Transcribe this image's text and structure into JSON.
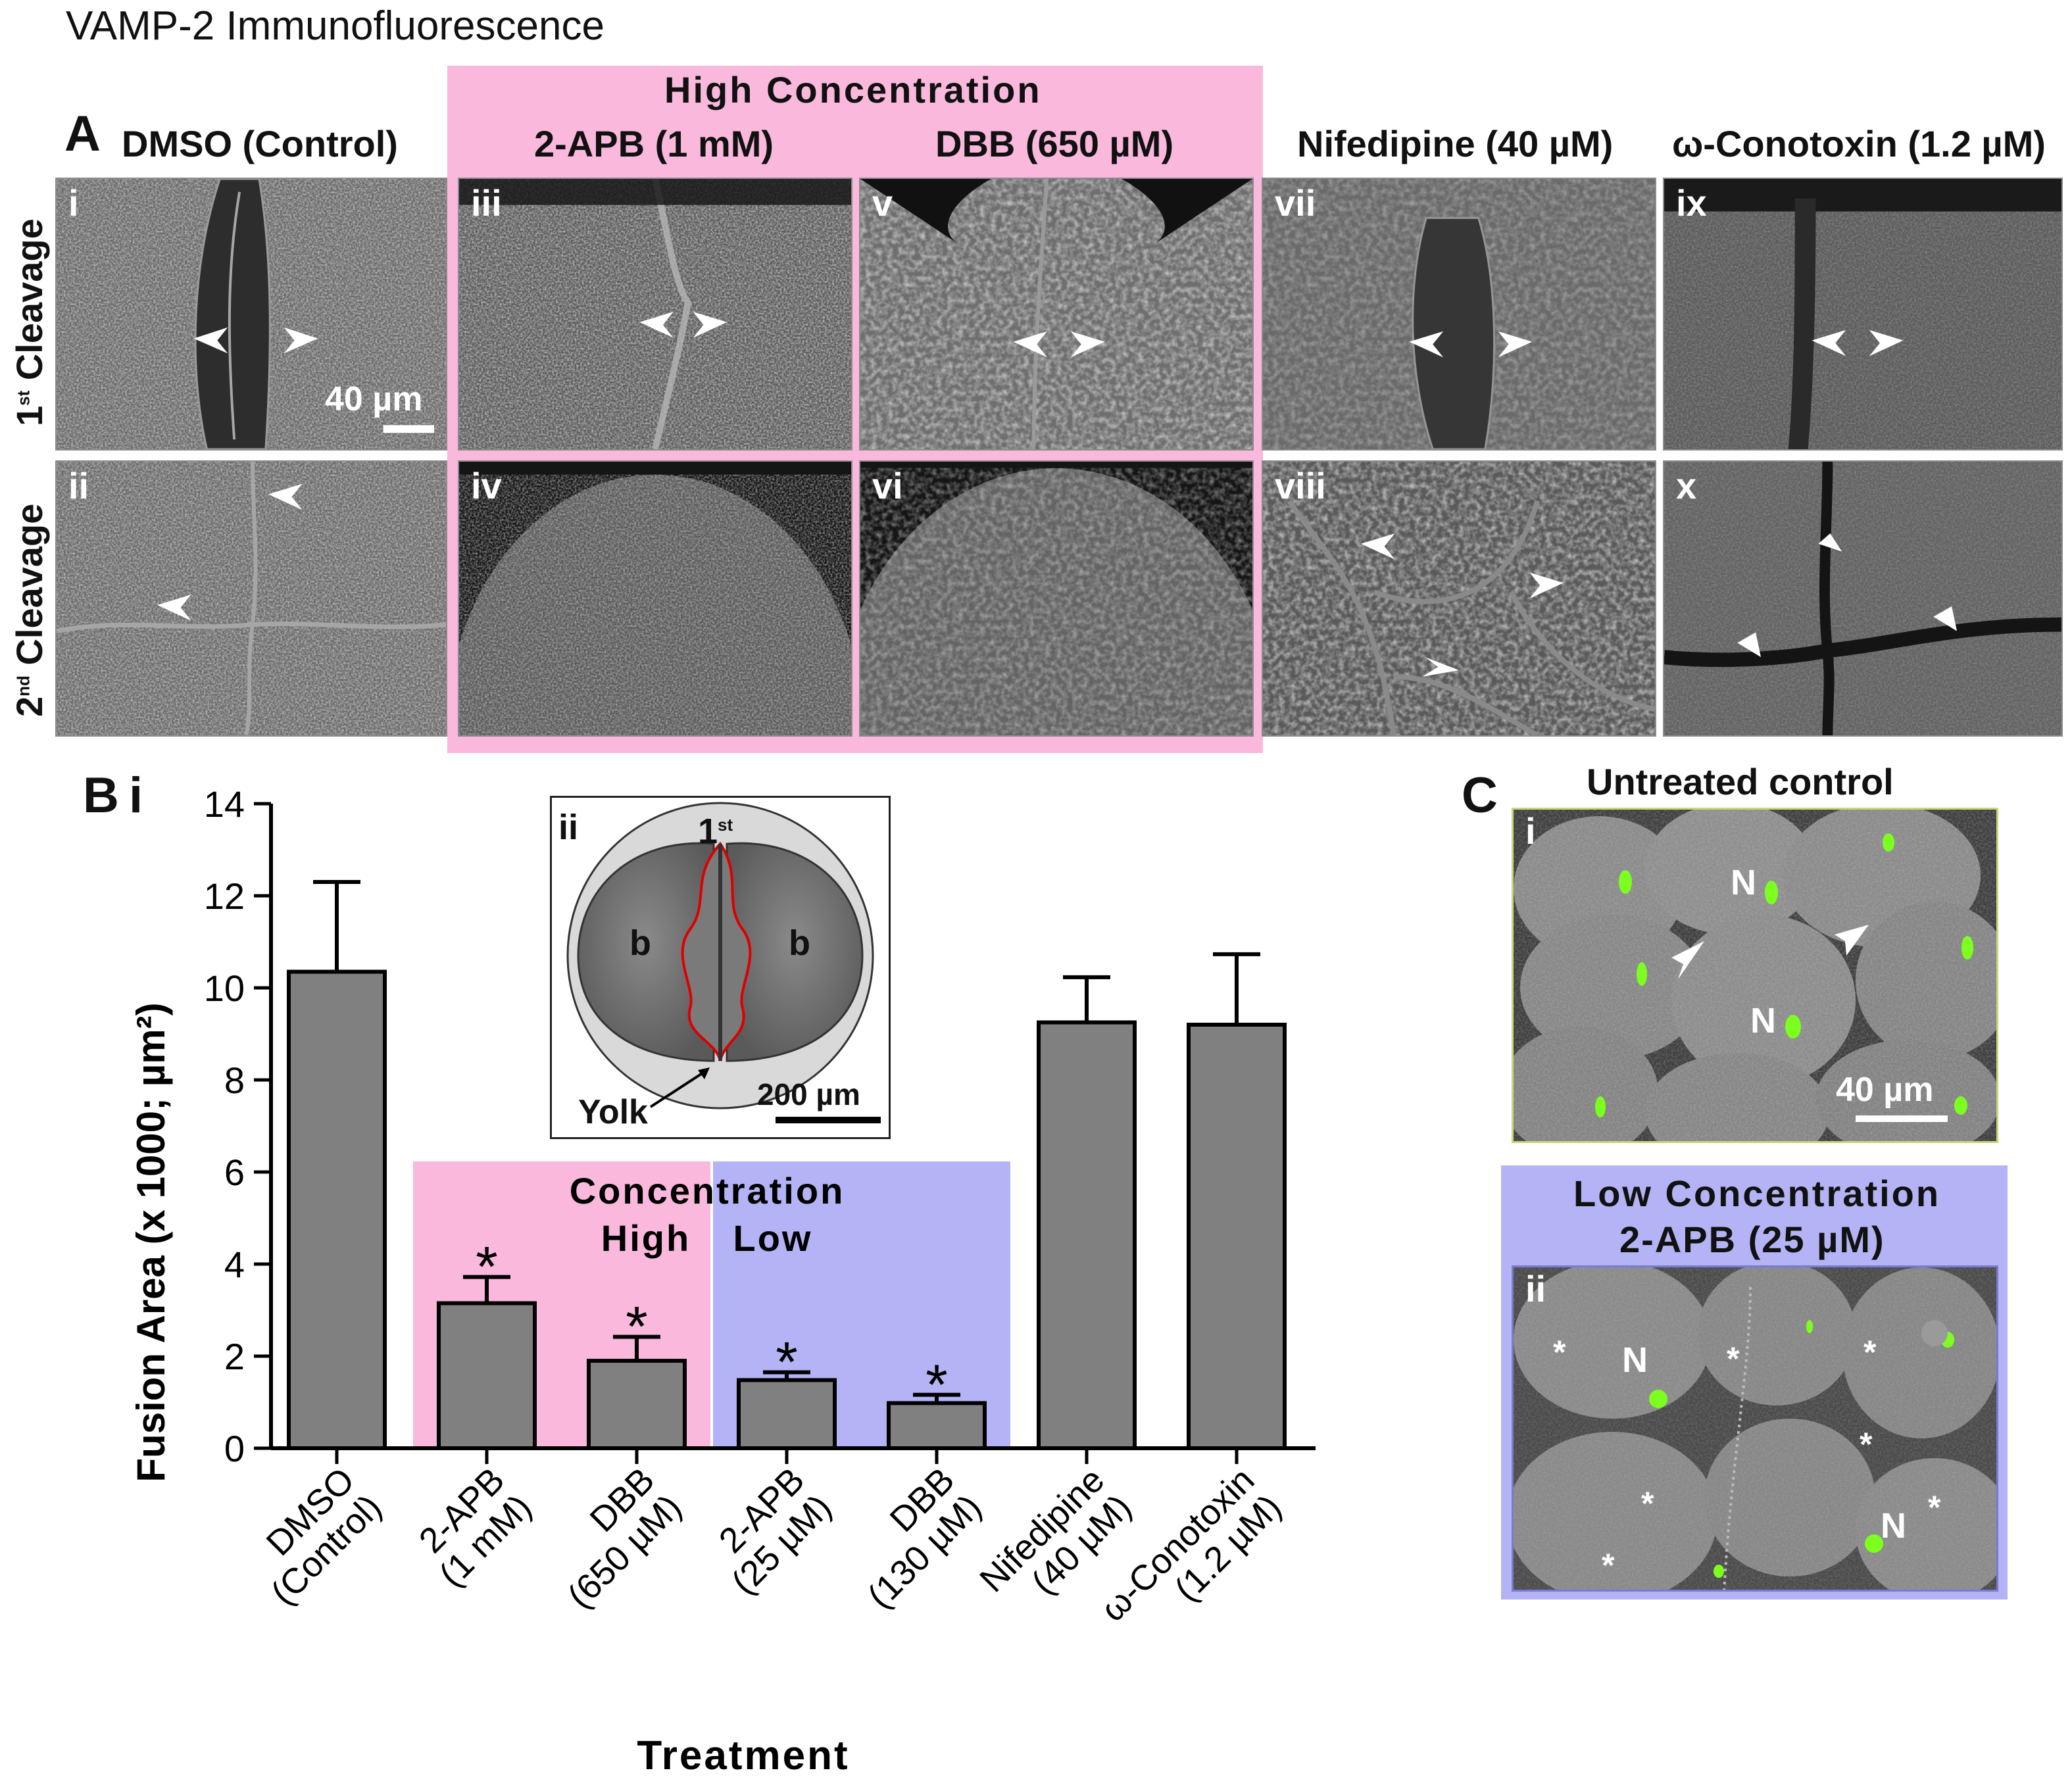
{
  "figure_title": "VAMP-2 Immunofluorescence",
  "panel_a": {
    "letter": "A",
    "group_label": "High Concentration",
    "columns": [
      "DMSO (Control)",
      "2-APB (1 mM)",
      "DBB (650 µM)",
      "Nifedipine (40 µM)",
      "ω-Conotoxin (1.2 µM)"
    ],
    "row_labels": [
      {
        "ordinal": "1",
        "superscript": "st",
        "text": "Cleavage"
      },
      {
        "ordinal": "2",
        "superscript": "nd",
        "text": "Cleavage"
      }
    ],
    "images": {
      "i": "i",
      "ii": "ii",
      "iii": "iii",
      "iv": "iv",
      "v": "v",
      "vi": "vi",
      "vii": "vii",
      "viii": "viii",
      "ix": "ix",
      "x": "x"
    },
    "scale_bar": "40 µm"
  },
  "panel_b": {
    "letter": "B",
    "sub": "i",
    "inset": {
      "sub": "ii",
      "cleavage_label": "1",
      "cleavage_sup": "st",
      "blastomere_label": "b",
      "yolk_label": "Yolk",
      "scale_bar": "200 µm"
    },
    "shading_labels": {
      "title": "Concentration",
      "high": "High",
      "low": "Low"
    },
    "significance_marker": "*"
  },
  "chart_data": {
    "type": "bar",
    "categories": [
      "DMSO (Control)",
      "2-APB (1 mM)",
      "DBB (650 µM)",
      "2-APB (25 µM)",
      "DBB (130 µM)",
      "Nifedipine (40 µM)",
      "ω-Conotoxin (1.2 µM)"
    ],
    "tick_labels": [
      [
        "DMSO",
        "(Control)"
      ],
      [
        "2-APB",
        "(1 mM)"
      ],
      [
        "DBB",
        "(650 µM)"
      ],
      [
        "2-APB",
        "(25 µM)"
      ],
      [
        "DBB",
        "(130 µM)"
      ],
      [
        "Nifedipine",
        "(40 µM)"
      ],
      [
        "ω-Conotoxin",
        "(1.2 µM)"
      ]
    ],
    "values": [
      10.35,
      3.15,
      1.9,
      1.48,
      0.98,
      9.25,
      9.2
    ],
    "errors": [
      1.95,
      0.57,
      0.52,
      0.17,
      0.18,
      0.98,
      1.53
    ],
    "significant": [
      false,
      true,
      true,
      true,
      true,
      false,
      false
    ],
    "concentration_group": [
      "",
      "high",
      "high",
      "low",
      "low",
      "",
      ""
    ],
    "xlabel": "Treatment",
    "ylabel": "Fusion Area (x 1000; µm²)",
    "ylim": [
      0,
      14
    ],
    "yticks": [
      0,
      2,
      4,
      6,
      8,
      10,
      12,
      14
    ],
    "bar_color": "#808080",
    "high_color": "#f9b8dc",
    "low_color": "#b3b3f5",
    "grid": false
  },
  "panel_c": {
    "letter": "C",
    "upper_title": "Untreated control",
    "upper_sub": "i",
    "lower_title_1": "Low Concentration",
    "lower_title_2": "2-APB (25 µM)",
    "lower_sub": "ii",
    "nucleus_label": "N",
    "asterisk": "*",
    "scale_bar": "40 µm",
    "nucleus_color": "#7cff1e"
  }
}
